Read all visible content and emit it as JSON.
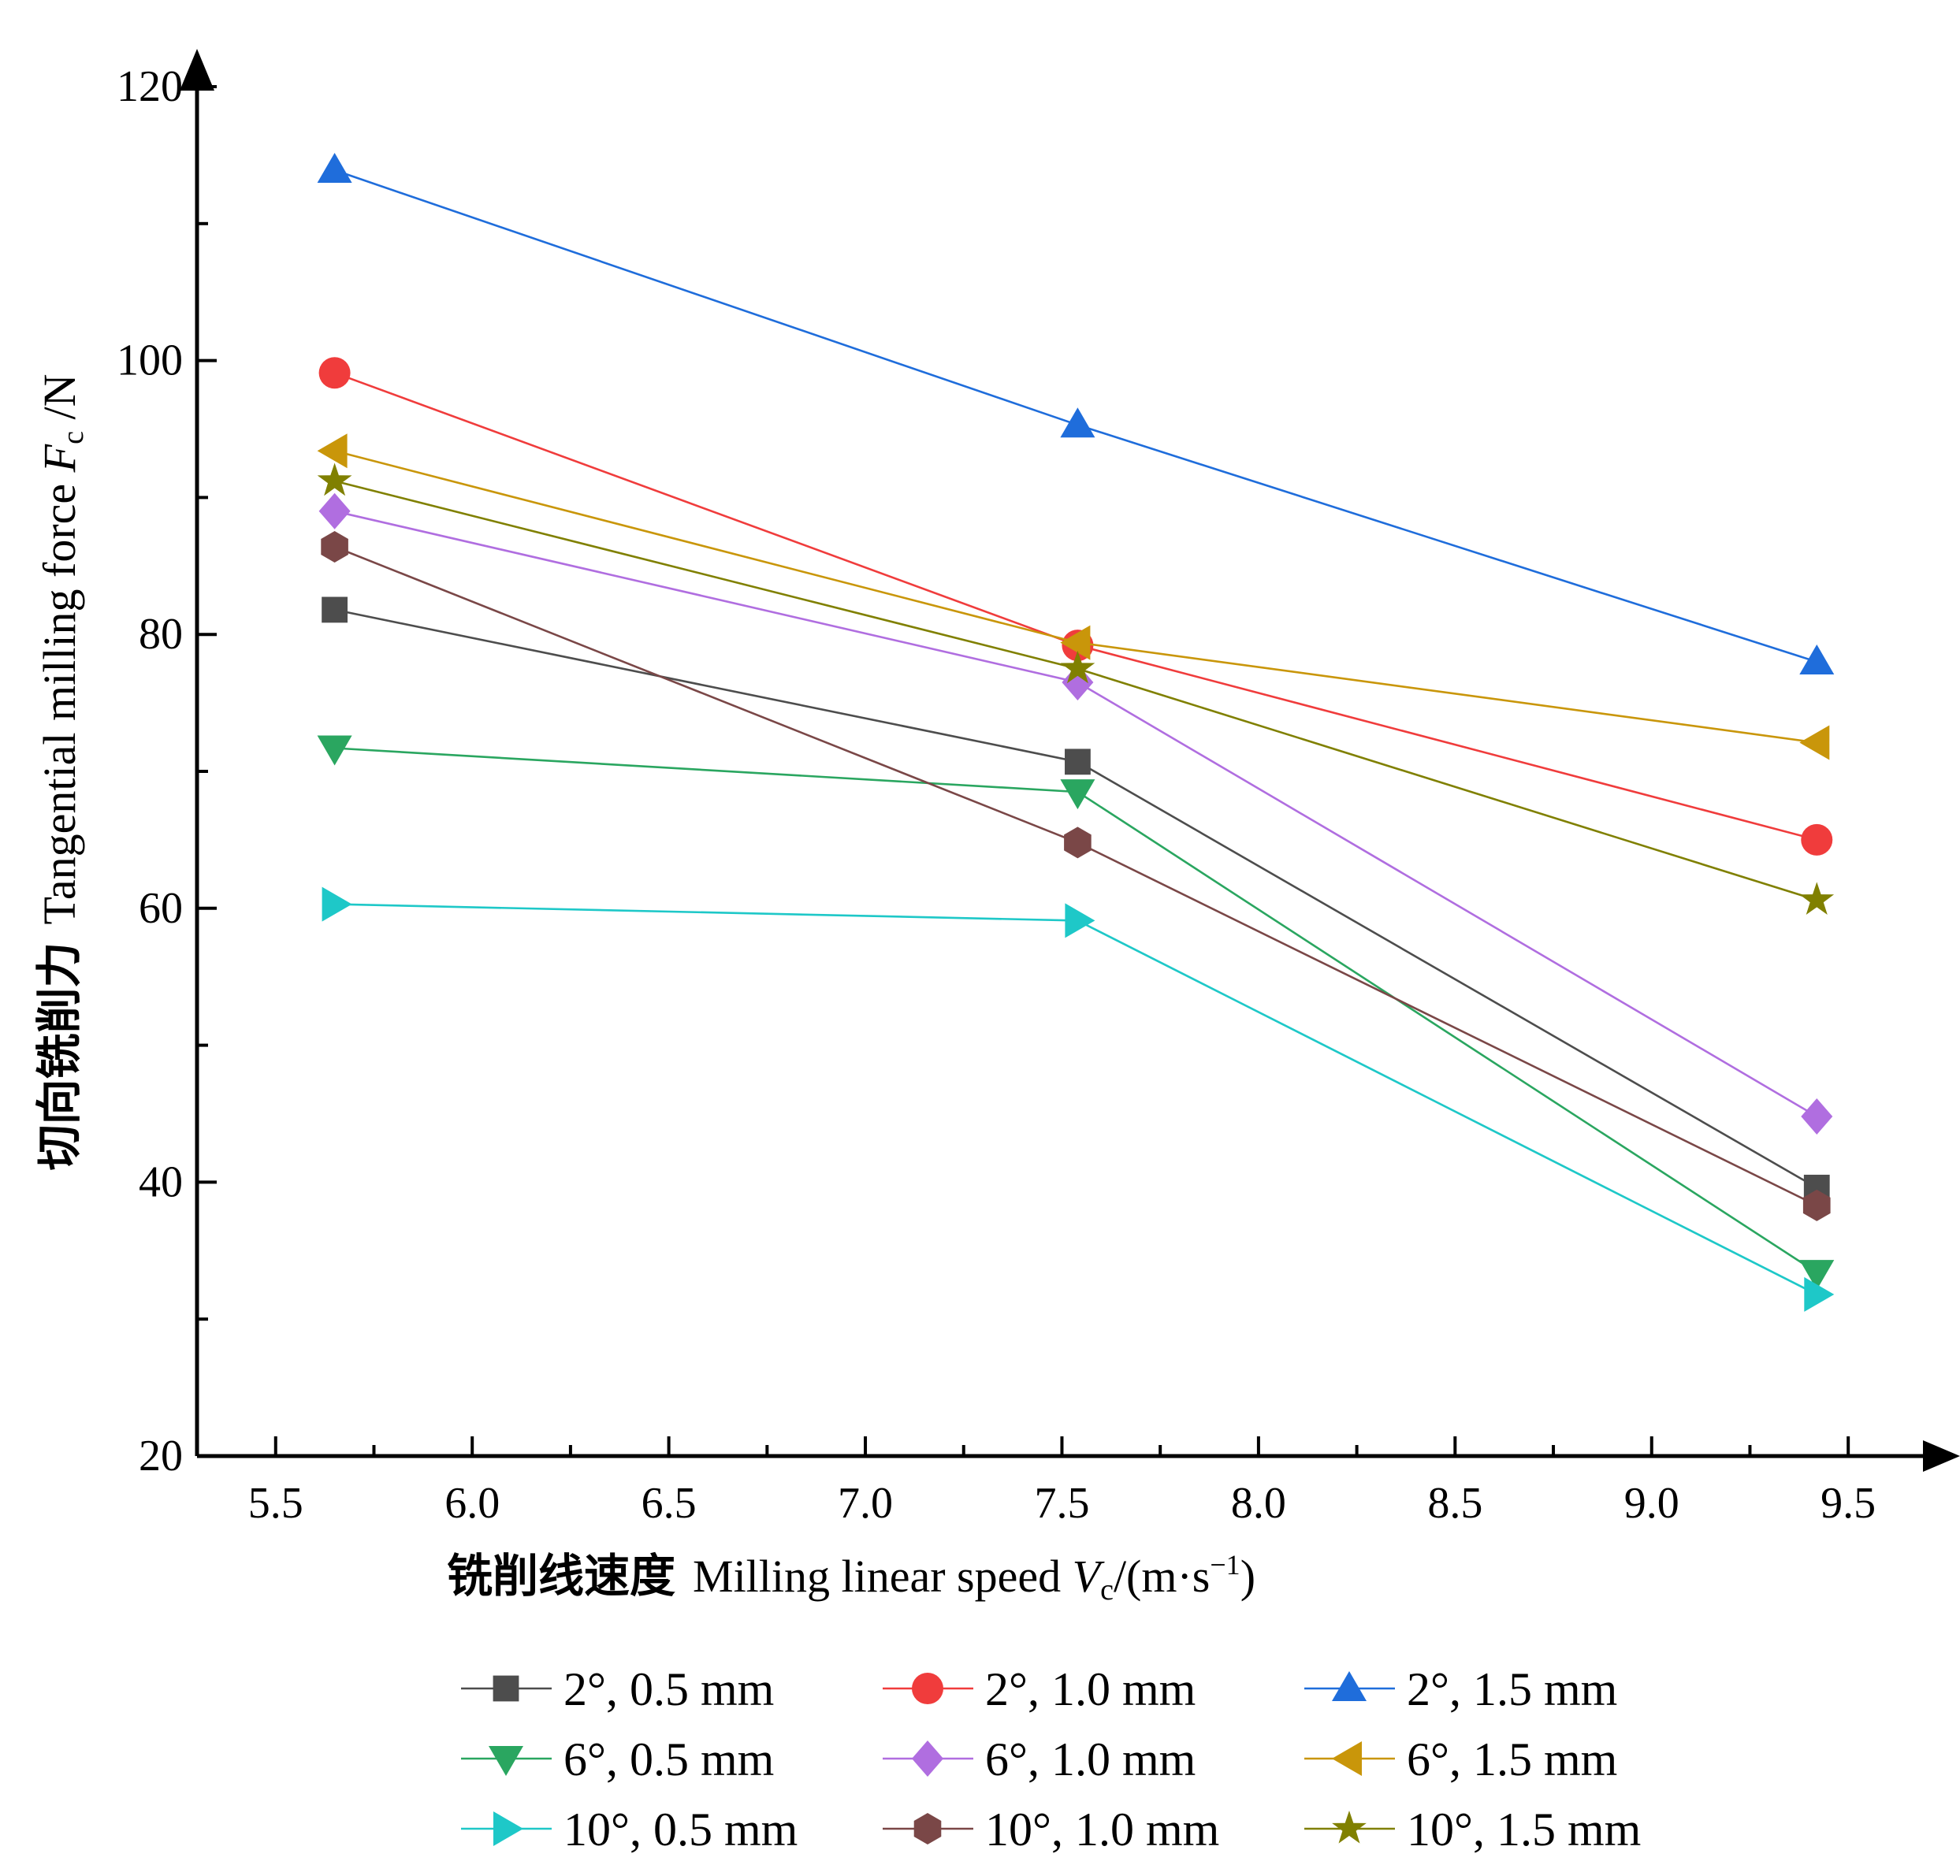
{
  "chart_data": {
    "type": "line",
    "xlabel": {
      "cn": "铣削线速度",
      "en": "Milling linear speed ",
      "var": "V",
      "sub": "c",
      "unit_pre": "/(m·s",
      "unit_sup": "−1",
      "unit_post": ")"
    },
    "ylabel": {
      "cn": "切向铣削力",
      "en": "Tangential milling force ",
      "var": "F",
      "sub": "c",
      "unit": " /N"
    },
    "xlim": [
      5.3,
      9.65
    ],
    "ylim": [
      20,
      120
    ],
    "xticks": [
      "5.5",
      "6.0",
      "6.5",
      "7.0",
      "7.5",
      "8.0",
      "8.5",
      "9.0",
      "9.5"
    ],
    "yticks": [
      "20",
      "40",
      "60",
      "80",
      "100",
      "120"
    ],
    "x": [
      5.65,
      7.54,
      9.42
    ],
    "series": [
      {
        "name": "2°, 0.5 mm",
        "values": [
          81.8,
          70.7,
          39.6
        ],
        "color": "#4d4d4d",
        "marker": "square"
      },
      {
        "name": "2°, 1.0 mm",
        "values": [
          99.1,
          79.2,
          65.0
        ],
        "color": "#f03c3c",
        "marker": "circle"
      },
      {
        "name": "2°, 1.5 mm",
        "values": [
          113.9,
          95.3,
          78.0
        ],
        "color": "#1f6ddb",
        "marker": "triangle-up"
      },
      {
        "name": "6°, 0.5 mm",
        "values": [
          71.7,
          68.5,
          33.4
        ],
        "color": "#2aa660",
        "marker": "triangle-down"
      },
      {
        "name": "6°, 1.0 mm",
        "values": [
          89.0,
          76.5,
          44.8
        ],
        "color": "#b06ee0",
        "marker": "diamond"
      },
      {
        "name": "6°, 1.5 mm",
        "values": [
          93.4,
          79.4,
          72.1
        ],
        "color": "#c9960a",
        "marker": "triangle-left"
      },
      {
        "name": "10°, 0.5 mm",
        "values": [
          60.3,
          59.1,
          31.8
        ],
        "color": "#1ec8c8",
        "marker": "triangle-right"
      },
      {
        "name": "10°, 1.0 mm",
        "values": [
          86.4,
          64.8,
          38.3
        ],
        "color": "#7a4747",
        "marker": "hexagon"
      },
      {
        "name": "10°, 1.5 mm",
        "values": [
          91.2,
          77.5,
          60.6
        ],
        "color": "#808000",
        "marker": "star"
      }
    ],
    "grid": false,
    "legend_position": "bottom"
  }
}
